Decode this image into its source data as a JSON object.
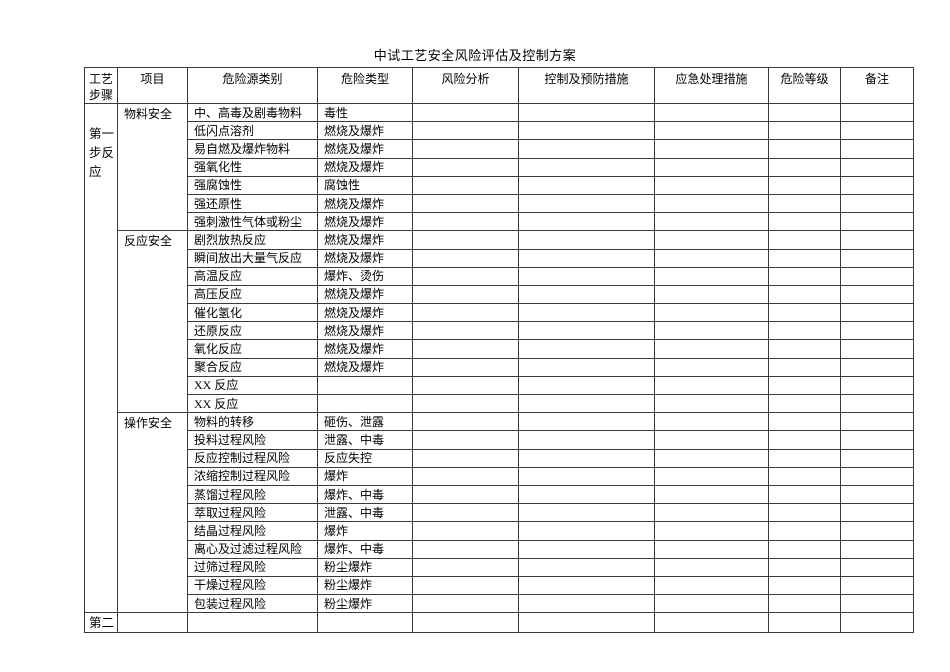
{
  "title": "中试工艺安全风险评估及控制方案",
  "colors": {
    "background": "#ffffff",
    "text": "#000000",
    "border": "#3a3a3a"
  },
  "table": {
    "headers": [
      "工艺步骤",
      "项目",
      "危险源类别",
      "危险类型",
      "风险分析",
      "控制及预防措施",
      "应急处理措施",
      "危险等级",
      "备注"
    ],
    "step1_label": "第一步反应",
    "step2_label": "第二",
    "groups": [
      {
        "project": "物料安全",
        "rows": [
          {
            "source": "中、高毒及剧毒物料",
            "type": "毒性"
          },
          {
            "source": "低闪点溶剂",
            "type": "燃烧及爆炸"
          },
          {
            "source": "易自燃及爆炸物料",
            "type": "燃烧及爆炸"
          },
          {
            "source": "强氧化性",
            "type": "燃烧及爆炸"
          },
          {
            "source": "强腐蚀性",
            "type": "腐蚀性"
          },
          {
            "source": "强还原性",
            "type": "燃烧及爆炸"
          },
          {
            "source": "强刺激性气体或粉尘",
            "type": "燃烧及爆炸"
          }
        ]
      },
      {
        "project": "反应安全",
        "rows": [
          {
            "source": "剧烈放热反应",
            "type": "燃烧及爆炸"
          },
          {
            "source": "瞬间放出大量气反应",
            "type": "燃烧及爆炸"
          },
          {
            "source": "高温反应",
            "type": "爆炸、烫伤"
          },
          {
            "source": "高压反应",
            "type": "燃烧及爆炸"
          },
          {
            "source": "催化氢化",
            "type": "燃烧及爆炸"
          },
          {
            "source": "还原反应",
            "type": "燃烧及爆炸"
          },
          {
            "source": "氧化反应",
            "type": "燃烧及爆炸"
          },
          {
            "source": "聚合反应",
            "type": "燃烧及爆炸"
          },
          {
            "source": "XX 反应",
            "type": ""
          },
          {
            "source": "XX 反应",
            "type": ""
          }
        ]
      },
      {
        "project": "操作安全",
        "rows": [
          {
            "source": "物料的转移",
            "type": "砸伤、泄露"
          },
          {
            "source": "投料过程风险",
            "type": "泄露、中毒"
          },
          {
            "source": "反应控制过程风险",
            "type": "反应失控"
          },
          {
            "source": "浓缩控制过程风险",
            "type": "爆炸"
          },
          {
            "source": "蒸馏过程风险",
            "type": "爆炸、中毒"
          },
          {
            "source": "萃取过程风险",
            "type": "泄露、中毒"
          },
          {
            "source": "结晶过程风险",
            "type": "爆炸"
          },
          {
            "source": "离心及过滤过程风险",
            "type": "爆炸、中毒"
          },
          {
            "source": "过筛过程风险",
            "type": "粉尘爆炸"
          },
          {
            "source": "干燥过程风险",
            "type": "粉尘爆炸"
          },
          {
            "source": "包装过程风险",
            "type": "粉尘爆炸"
          }
        ]
      }
    ]
  }
}
